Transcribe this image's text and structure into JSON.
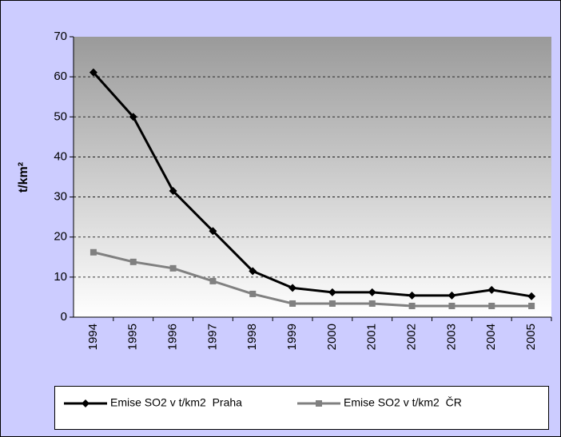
{
  "chart_data": {
    "type": "line",
    "y_label": "t/km²",
    "categories": [
      "1994",
      "1995",
      "1996",
      "1997",
      "1998",
      "1999",
      "2000",
      "2001",
      "2002",
      "2003",
      "2004",
      "2005"
    ],
    "series": [
      {
        "name": "Emise SO2 v t/km2  Praha",
        "color": "#000000",
        "marker": "diamond",
        "values": [
          61.1,
          50,
          31.5,
          21.5,
          11.5,
          7.3,
          6.2,
          6.2,
          5.4,
          5.4,
          6.8,
          5.2
        ]
      },
      {
        "name": "Emise SO2 v t/km2  ČR",
        "color": "#808080",
        "marker": "square",
        "values": [
          16.2,
          13.8,
          12.2,
          9,
          5.8,
          3.4,
          3.4,
          3.4,
          2.8,
          2.8,
          2.8,
          2.8
        ]
      }
    ],
    "ylim": [
      0,
      70
    ],
    "yticks": [
      0,
      10,
      20,
      30,
      40,
      50,
      60,
      70
    ],
    "grid": true,
    "legend": "bottom"
  }
}
